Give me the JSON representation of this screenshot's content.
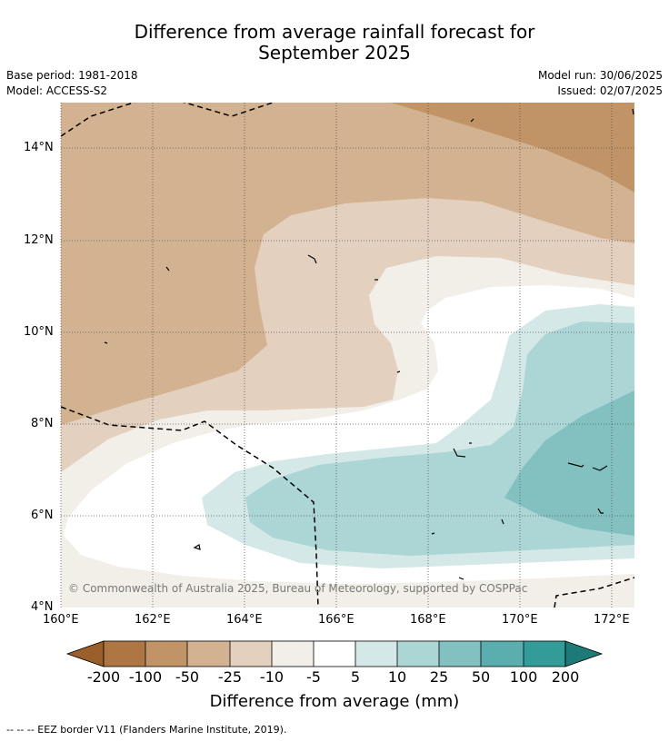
{
  "title": {
    "line1": "Difference from average rainfall forecast for",
    "line2": "September 2025"
  },
  "meta": {
    "base_period": "Base period: 1981-2018",
    "model": "Model: ACCESS-S2",
    "model_run": "Model run: 30/06/2025",
    "issued": "Issued: 02/07/2025"
  },
  "axes": {
    "lat_labels": [
      "14°N",
      "12°N",
      "10°N",
      "8°N",
      "6°N",
      "4°N"
    ],
    "lon_labels": [
      "160°E",
      "162°E",
      "164°E",
      "166°E",
      "168°E",
      "170°E",
      "172°E"
    ]
  },
  "colorbar": {
    "ticks": [
      "-200",
      "-100",
      "-50",
      "-25",
      "-10",
      "-5",
      "5",
      "10",
      "25",
      "50",
      "100",
      "200"
    ],
    "colors": [
      "#9b5f2b",
      "#ae7642",
      "#c19468",
      "#d2b290",
      "#e4d0bf",
      "#f2eee8",
      "#ffffff",
      "#d4e8e7",
      "#acd6d5",
      "#82c1c0",
      "#5aafae",
      "#339b98",
      "#1e7a78"
    ],
    "label": "Difference from average (mm)"
  },
  "copyright": "© Commonwealth of Australia 2025, Bureau of Meteorology, supported by COSPPac",
  "footer": "--  --  -- EEZ border V11 (Flanders Marine Institute, 2019)."
}
